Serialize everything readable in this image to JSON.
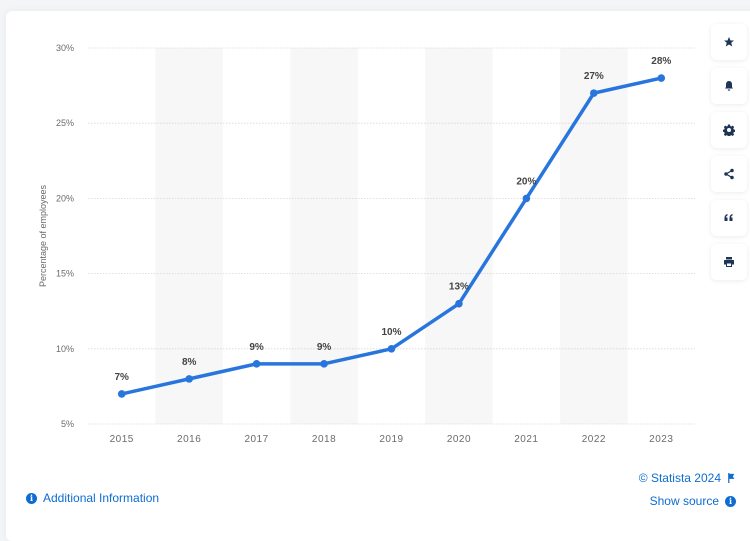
{
  "chart_data": {
    "type": "line",
    "title": "",
    "xlabel": "",
    "ylabel": "Percentage of employees",
    "categories": [
      "2015",
      "2016",
      "2017",
      "2018",
      "2019",
      "2020",
      "2021",
      "2022",
      "2023"
    ],
    "series": [
      {
        "name": "Percentage of employees",
        "values": [
          7,
          8,
          9,
          9,
          10,
          13,
          20,
          27,
          28
        ],
        "color": "#2876dd"
      }
    ],
    "data_labels": [
      "7%",
      "8%",
      "9%",
      "9%",
      "10%",
      "13%",
      "20%",
      "27%",
      "28%"
    ],
    "yticks": [
      "5%",
      "10%",
      "15%",
      "20%",
      "25%",
      "30%"
    ],
    "ylim": [
      5,
      30
    ],
    "grid": true,
    "legend": null,
    "alternating_bands": true
  },
  "toolbar": {
    "buttons": [
      {
        "name": "favorite",
        "icon": "star-icon"
      },
      {
        "name": "notification",
        "icon": "bell-icon"
      },
      {
        "name": "settings",
        "icon": "gear-icon"
      },
      {
        "name": "share",
        "icon": "share-icon"
      },
      {
        "name": "cite",
        "icon": "quote-icon"
      },
      {
        "name": "print",
        "icon": "printer-icon"
      }
    ]
  },
  "footer": {
    "additional_info": "Additional Information",
    "copyright": "© Statista 2024",
    "show_source": "Show source"
  },
  "colors": {
    "line": "#2876dd",
    "link": "#0e6cd1",
    "band": "#f7f7f8",
    "icon": "#1e3556"
  }
}
